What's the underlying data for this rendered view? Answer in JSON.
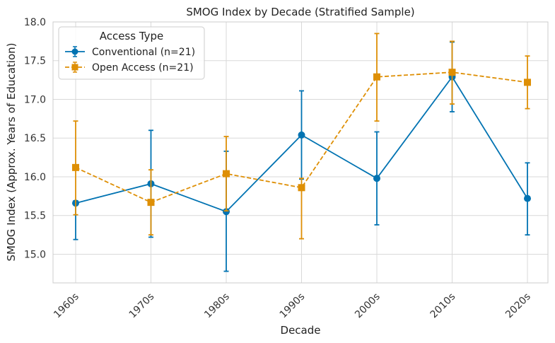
{
  "chart_data": {
    "type": "line",
    "title": "SMOG Index by Decade (Stratified Sample)",
    "xlabel": "Decade",
    "ylabel": "SMOG Index (Approx. Years of Education)",
    "categories": [
      "1960s",
      "1970s",
      "1980s",
      "1990s",
      "2000s",
      "2010s",
      "2020s"
    ],
    "ylim": [
      14.63,
      18.0
    ],
    "yticks": [
      "15.0",
      "15.5",
      "16.0",
      "16.5",
      "17.0",
      "17.5",
      "18.0"
    ],
    "grid": true,
    "legend": {
      "title": "Access Type",
      "placement": "top-left"
    },
    "series": [
      {
        "name": "Conventional (n=21)",
        "color": "#0173b2",
        "marker": "circle",
        "linestyle": "solid",
        "values": [
          15.66,
          15.91,
          15.55,
          16.54,
          15.98,
          17.29,
          15.72
        ],
        "err_low": [
          15.19,
          15.22,
          14.78,
          15.97,
          15.38,
          16.84,
          15.25
        ],
        "err_high": [
          15.69,
          16.6,
          16.33,
          17.11,
          16.58,
          17.74,
          16.18
        ]
      },
      {
        "name": "Open Access (n=21)",
        "color": "#de8f05",
        "marker": "square",
        "linestyle": "dashed",
        "values": [
          16.12,
          15.67,
          16.04,
          15.86,
          17.29,
          17.35,
          17.22
        ],
        "err_low": [
          15.51,
          15.25,
          15.56,
          15.2,
          16.72,
          16.94,
          16.88
        ],
        "err_high": [
          16.72,
          16.09,
          16.52,
          15.98,
          17.85,
          17.75,
          17.56
        ]
      }
    ]
  }
}
